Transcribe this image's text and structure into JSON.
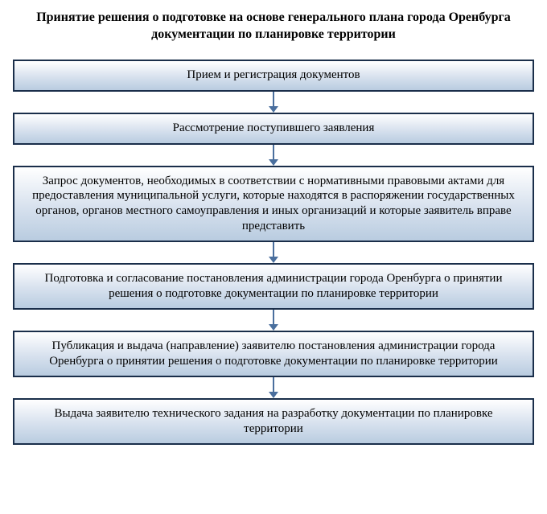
{
  "title": {
    "text": "Принятие решения о подготовке  на основе генерального плана города Оренбурга документации по планировке территории",
    "fontsize": 16,
    "color": "#000000"
  },
  "flowchart": {
    "type": "flowchart",
    "box_border_color": "#1a2e4a",
    "box_border_width": 2,
    "box_gradient_top": "#ffffff",
    "box_gradient_mid": "#d7e1ee",
    "box_gradient_bottom": "#b9cce0",
    "text_color": "#000000",
    "text_fontsize": 15,
    "arrow_color": "#4a6f9e",
    "arrow_line_width": 2,
    "arrow_line_height": 18,
    "arrow_head_size": 8,
    "background_color": "#ffffff",
    "steps": [
      {
        "label": "Прием и регистрация  документов",
        "min_height": 40
      },
      {
        "label": "Рассмотрение поступившего заявления",
        "min_height": 40
      },
      {
        "label": "Запрос документов, необходимых в соответствии с нормативными правовыми актами для предоставления муниципальной услуги, которые находятся в распоряжении государственных органов, органов местного самоуправления и иных организаций и которые заявитель вправе представить",
        "min_height": 92
      },
      {
        "label": "Подготовка и согласование постановления администрации города Оренбурга о принятии решения о подготовке документации по планировке территории",
        "min_height": 58
      },
      {
        "label": "Публикация и  выдача (направление) заявителю постановления администрации города Оренбурга о принятии решения о подготовке документации по планировке  территории",
        "min_height": 58
      },
      {
        "label": "Выдача заявителю технического задания  на разработку  документации по планировке территории",
        "min_height": 58
      }
    ]
  }
}
